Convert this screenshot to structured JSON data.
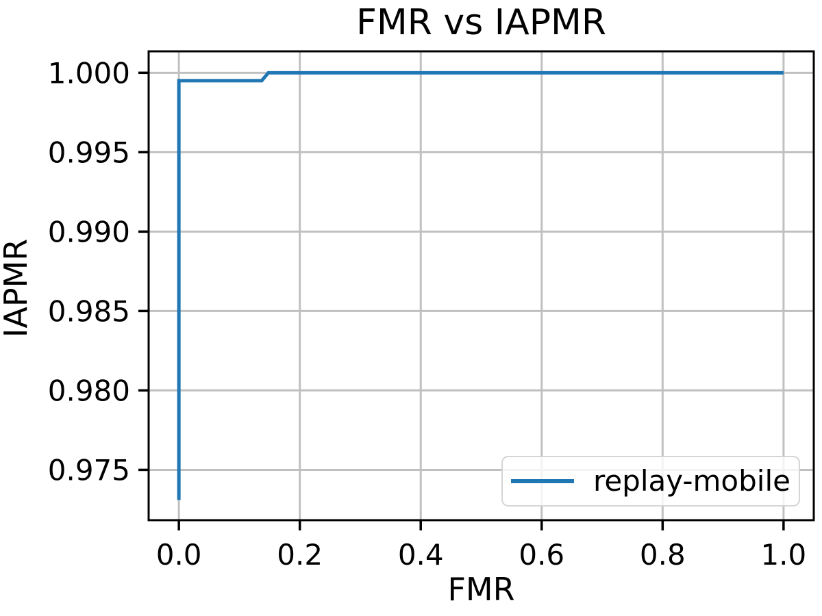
{
  "figure": {
    "background": "#ffffff"
  },
  "chart_data": {
    "type": "line",
    "title": "FMR vs IAPMR",
    "xlabel": "FMR",
    "ylabel": "IAPMR",
    "xlim": [
      -0.05,
      1.05
    ],
    "ylim": [
      0.97183,
      1.00135
    ],
    "xticks": [
      0.0,
      0.2,
      0.4,
      0.6,
      0.8,
      1.0
    ],
    "xtick_labels": [
      "0.0",
      "0.2",
      "0.4",
      "0.6",
      "0.8",
      "1.0"
    ],
    "yticks": [
      0.975,
      0.98,
      0.985,
      0.99,
      0.995,
      1.0
    ],
    "ytick_labels": [
      "0.975",
      "0.980",
      "0.985",
      "0.990",
      "0.995",
      "1.000"
    ],
    "grid": true,
    "legend_position": "lower right",
    "series": [
      {
        "name": "replay-mobile",
        "color": "#1f77b4",
        "line_width": 5,
        "points": [
          [
            0.0,
            0.9731
          ],
          [
            0.0,
            0.9995
          ],
          [
            0.137,
            0.9995
          ],
          [
            0.148,
            1.0
          ],
          [
            1.0,
            1.0
          ]
        ]
      }
    ],
    "colors": {
      "grid": "#c0c0c0",
      "axis": "#000000",
      "text": "#000000",
      "legend_border": "#d5d5d5",
      "legend_background": "#ffffff"
    }
  }
}
